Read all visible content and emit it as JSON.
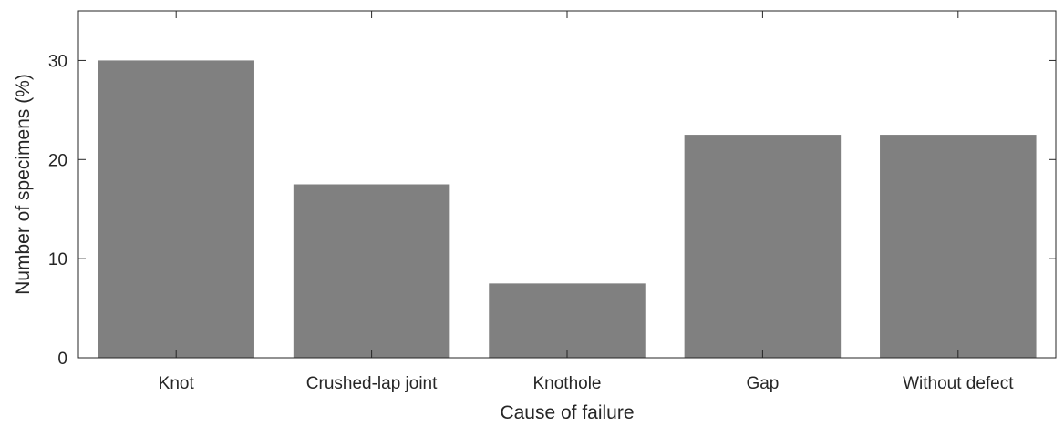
{
  "chart_data": {
    "type": "bar",
    "categories": [
      "Knot",
      "Crushed-lap joint",
      "Knothole",
      "Gap",
      "Without defect"
    ],
    "values": [
      30,
      17.5,
      7.5,
      22.5,
      22.5
    ],
    "xlabel": "Cause of failure",
    "ylabel": "Number of specimens (%)",
    "ylim": [
      0,
      35
    ],
    "yticks": [
      0,
      10,
      20,
      30
    ],
    "ytick_labels": [
      "0",
      "10",
      "20",
      "30"
    ],
    "grid": false,
    "legend": "none",
    "bar_color": "#808080",
    "axis_color": "#262626"
  }
}
